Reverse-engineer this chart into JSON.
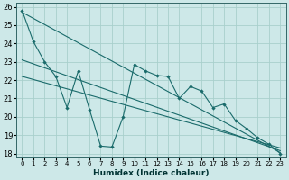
{
  "xlabel": "Humidex (Indice chaleur)",
  "bg_color": "#cde8e8",
  "grid_color": "#a8d0cc",
  "line_color": "#1a6b6b",
  "spine_color": "#336666",
  "xlim": [
    -0.5,
    23.5
  ],
  "ylim": [
    17.8,
    26.2
  ],
  "xticks": [
    0,
    1,
    2,
    3,
    4,
    5,
    6,
    7,
    8,
    9,
    10,
    11,
    12,
    13,
    14,
    15,
    16,
    17,
    18,
    19,
    20,
    21,
    22,
    23
  ],
  "yticks": [
    18,
    19,
    20,
    21,
    22,
    23,
    24,
    25,
    26
  ],
  "series1_x": [
    0,
    1,
    2,
    3,
    4,
    5,
    6,
    7,
    8,
    9,
    10,
    11,
    12,
    13,
    14,
    15,
    16,
    17,
    18,
    19,
    20,
    21,
    22,
    23
  ],
  "series1_y": [
    25.8,
    24.1,
    23.0,
    22.2,
    20.5,
    22.5,
    20.4,
    18.4,
    18.35,
    20.0,
    22.85,
    22.5,
    22.25,
    22.2,
    21.0,
    21.65,
    21.4,
    20.5,
    20.7,
    19.8,
    19.35,
    18.85,
    18.5,
    18.0
  ],
  "trendline1": [
    [
      0,
      23
    ],
    [
      25.7,
      18.05
    ]
  ],
  "trendline2": [
    [
      0,
      23
    ],
    [
      23.1,
      18.15
    ]
  ],
  "trendline3": [
    [
      0,
      23
    ],
    [
      22.2,
      18.3
    ]
  ]
}
